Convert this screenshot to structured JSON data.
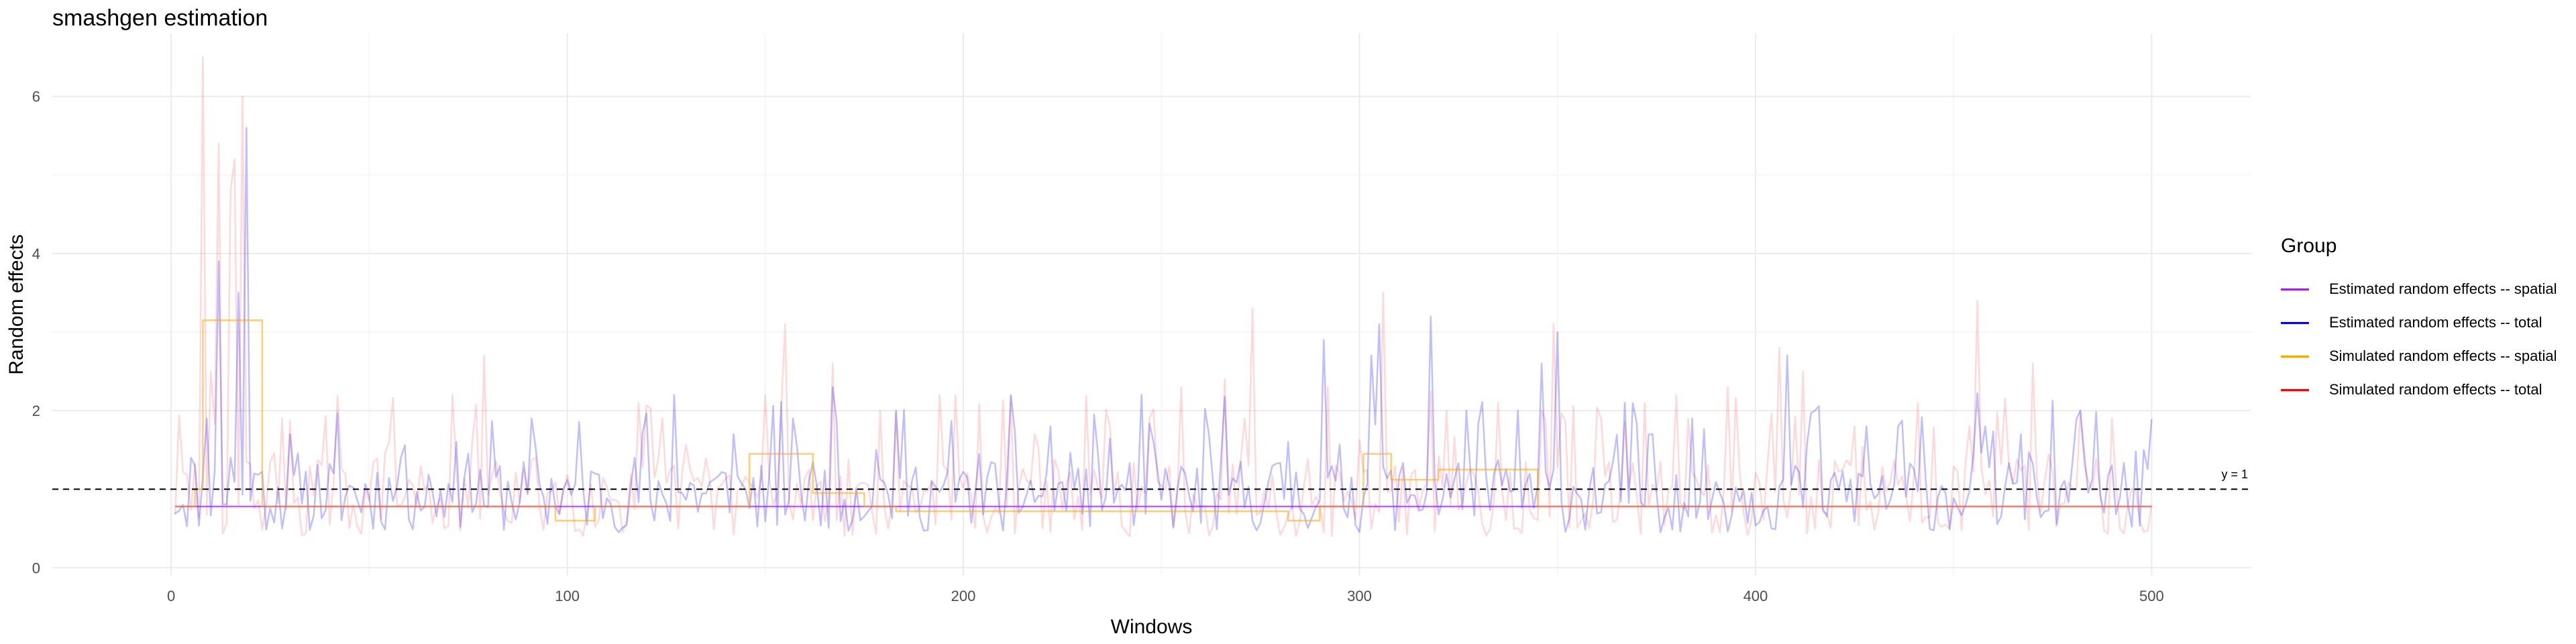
{
  "chart_data": {
    "type": "line",
    "title": "smashgen estimation",
    "xlabel": "Windows",
    "ylabel": "Random effects",
    "xlim": [
      -30,
      525
    ],
    "ylim": [
      -0.1,
      6.8
    ],
    "x_ticks": [
      0,
      100,
      200,
      300,
      400,
      500
    ],
    "y_ticks": [
      0,
      2,
      4,
      6
    ],
    "grid": true,
    "legend": {
      "title": "Group",
      "placement": "right",
      "entries": [
        {
          "label": "Estimated random effects -- spatial",
          "color": "#a020f0"
        },
        {
          "label": "Estimated random effects -- total",
          "color": "#0000ff"
        },
        {
          "label": "Simulated random effects -- spatial",
          "color": "#ffa500"
        },
        {
          "label": "Simulated random effects -- total",
          "color": "#ff0000"
        }
      ]
    },
    "reference_line": {
      "y": 1,
      "label": "y = 1",
      "style": "dashed"
    },
    "series": [
      {
        "name": "Estimated random effects -- spatial",
        "color": "#a020f0",
        "step": false,
        "x": [
          1,
          500
        ],
        "y": [
          0.78,
          0.78
        ]
      },
      {
        "name": "Estimated random effects -- total",
        "color": "#0000ff",
        "step": false,
        "seed": 11,
        "n": 500,
        "base": 0.8,
        "spread": 1.0,
        "peaks": [
          [
            5,
            1.4
          ],
          [
            9,
            1.9
          ],
          [
            12,
            3.9
          ],
          [
            15,
            1.4
          ],
          [
            17,
            3.5
          ],
          [
            19,
            5.6
          ],
          [
            21,
            1.2
          ],
          [
            30,
            1.7
          ],
          [
            58,
            1.4
          ],
          [
            72,
            1.6
          ],
          [
            99,
            1.0
          ],
          [
            107,
            1.2
          ],
          [
            117,
            1.4
          ],
          [
            127,
            2.2
          ],
          [
            142,
            1.7
          ],
          [
            157,
            1.9
          ],
          [
            167,
            2.3
          ],
          [
            178,
            1.5
          ],
          [
            183,
            2.0
          ],
          [
            212,
            2.2
          ],
          [
            222,
            1.8
          ],
          [
            248,
            1.6
          ],
          [
            262,
            1.7
          ],
          [
            282,
            1.6
          ],
          [
            291,
            2.9
          ],
          [
            303,
            2.7
          ],
          [
            305,
            3.1
          ],
          [
            318,
            3.2
          ],
          [
            327,
            2.0
          ],
          [
            340,
            2.0
          ],
          [
            346,
            2.6
          ],
          [
            350,
            3.0
          ],
          [
            367,
            2.1
          ],
          [
            374,
            1.7
          ],
          [
            384,
            1.9
          ],
          [
            408,
            2.7
          ],
          [
            415,
            2.0
          ],
          [
            428,
            1.8
          ],
          [
            436,
            1.8
          ],
          [
            458,
            1.8
          ],
          [
            467,
            1.7
          ],
          [
            482,
            2.0
          ],
          [
            498,
            1.5
          ]
        ]
      },
      {
        "name": "Simulated random effects -- spatial",
        "color": "#ffa500",
        "step": true,
        "x": [
          1,
          6,
          7,
          8,
          21,
          23,
          97,
          107,
          146,
          162,
          175,
          183,
          282,
          290,
          301,
          308,
          320,
          330,
          345,
          500
        ],
        "y": [
          0.78,
          1.0,
          1.0,
          3.15,
          3.15,
          0.78,
          0.6,
          0.78,
          1.45,
          0.95,
          0.78,
          0.72,
          0.6,
          0.78,
          1.45,
          1.12,
          1.25,
          1.25,
          0.78,
          0.78
        ]
      },
      {
        "name": "Simulated random effects -- total",
        "color": "#ff0000",
        "step": false,
        "seed": 29,
        "n": 500,
        "base": 0.75,
        "spread": 1.1,
        "peaks": [
          [
            8,
            6.5
          ],
          [
            10,
            2.5
          ],
          [
            12,
            5.4
          ],
          [
            15,
            4.8
          ],
          [
            16,
            5.2
          ],
          [
            18,
            6.0
          ],
          [
            28,
            1.9
          ],
          [
            55,
            1.6
          ],
          [
            79,
            2.7
          ],
          [
            92,
            1.4
          ],
          [
            118,
            2.1
          ],
          [
            124,
            1.9
          ],
          [
            150,
            2.2
          ],
          [
            155,
            3.1
          ],
          [
            167,
            2.6
          ],
          [
            194,
            2.2
          ],
          [
            218,
            1.7
          ],
          [
            237,
            1.8
          ],
          [
            255,
            2.3
          ],
          [
            266,
            2.4
          ],
          [
            271,
            1.9
          ],
          [
            273,
            3.3
          ],
          [
            292,
            2.3
          ],
          [
            306,
            3.5
          ],
          [
            322,
            2.0
          ],
          [
            335,
            2.1
          ],
          [
            349,
            3.1
          ],
          [
            361,
            1.9
          ],
          [
            372,
            2.1
          ],
          [
            380,
            2.2
          ],
          [
            383,
            1.9
          ],
          [
            393,
            2.3
          ],
          [
            406,
            2.8
          ],
          [
            412,
            2.5
          ],
          [
            425,
            1.8
          ],
          [
            441,
            2.1
          ],
          [
            454,
            1.8
          ],
          [
            456,
            3.4
          ],
          [
            470,
            2.6
          ],
          [
            482,
            2.0
          ],
          [
            490,
            1.9
          ],
          [
            500,
            0.8
          ]
        ]
      }
    ]
  }
}
